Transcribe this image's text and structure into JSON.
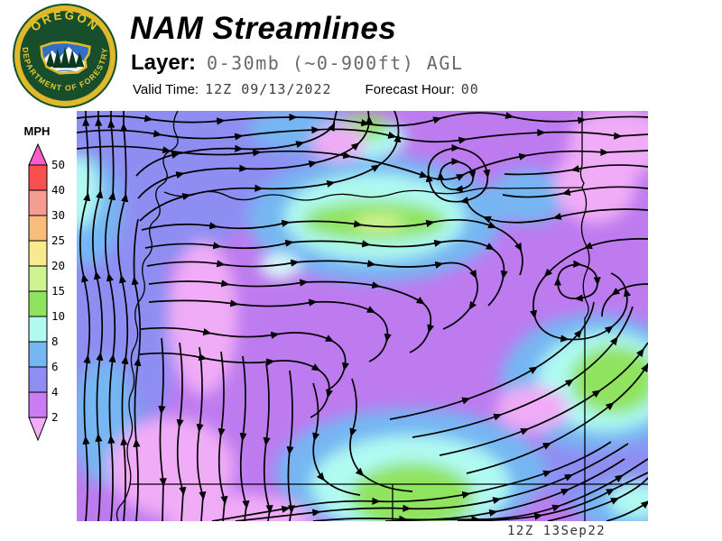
{
  "header": {
    "title": "NAM Streamlines",
    "layer_label": "Layer:",
    "layer_value": "0-30mb (~0-900ft) AGL",
    "valid_time_label": "Valid Time:",
    "valid_time_value": "12Z 09/13/2022",
    "forecast_label": "Forecast Hour:",
    "forecast_value": "00"
  },
  "logo": {
    "arc_top": "OREGON",
    "arc_bottom": "DEPARTMENT OF FORESTRY",
    "ring_color": "#dfb92a",
    "field_color": "#174e2b"
  },
  "colorbar": {
    "unit": "MPH",
    "tick_labels": [
      "50",
      "40",
      "30",
      "25",
      "20",
      "15",
      "10",
      "8",
      "6",
      "4",
      "2"
    ],
    "segments": [
      {
        "range": "40-50",
        "color": "#f6504f"
      },
      {
        "range": "30-40",
        "color": "#f79c92"
      },
      {
        "range": "25-30",
        "color": "#f8bc7c"
      },
      {
        "range": "20-25",
        "color": "#fae98e"
      },
      {
        "range": "15-20",
        "color": "#cdf392"
      },
      {
        "range": "10-15",
        "color": "#90e35f"
      },
      {
        "range": "8-10",
        "color": "#b0faf2"
      },
      {
        "range": "6-8",
        "color": "#76b6f2"
      },
      {
        "range": "4-6",
        "color": "#8e8ef2"
      },
      {
        "range": "2-4",
        "color": "#ca7df2"
      }
    ],
    "tip_top_color": "#fa5cc8",
    "tip_bottom_color": "#f0acf6"
  },
  "map": {
    "timestamp": "12Z 13Sep22"
  },
  "chart_data": {
    "type": "heatmap",
    "title": "NAM Streamlines",
    "layer": "0-30mb (~0-900ft) AGL",
    "valid_time": "12Z 09/13/2022",
    "forecast_hour": "00",
    "stamp": "12Z 13Sep22",
    "legend": {
      "unit": "MPH",
      "levels": [
        2,
        4,
        6,
        8,
        10,
        15,
        20,
        25,
        30,
        40,
        50
      ],
      "band_colors": [
        "#ca7df2",
        "#8e8ef2",
        "#76b6f2",
        "#b0faf2",
        "#90e35f",
        "#cdf392",
        "#fae98e",
        "#f8bc7c",
        "#f79c92",
        "#f6504f"
      ],
      "under_color": "#f0acf6",
      "over_color": "#fa5cc8",
      "legend_position": "left"
    }
  }
}
